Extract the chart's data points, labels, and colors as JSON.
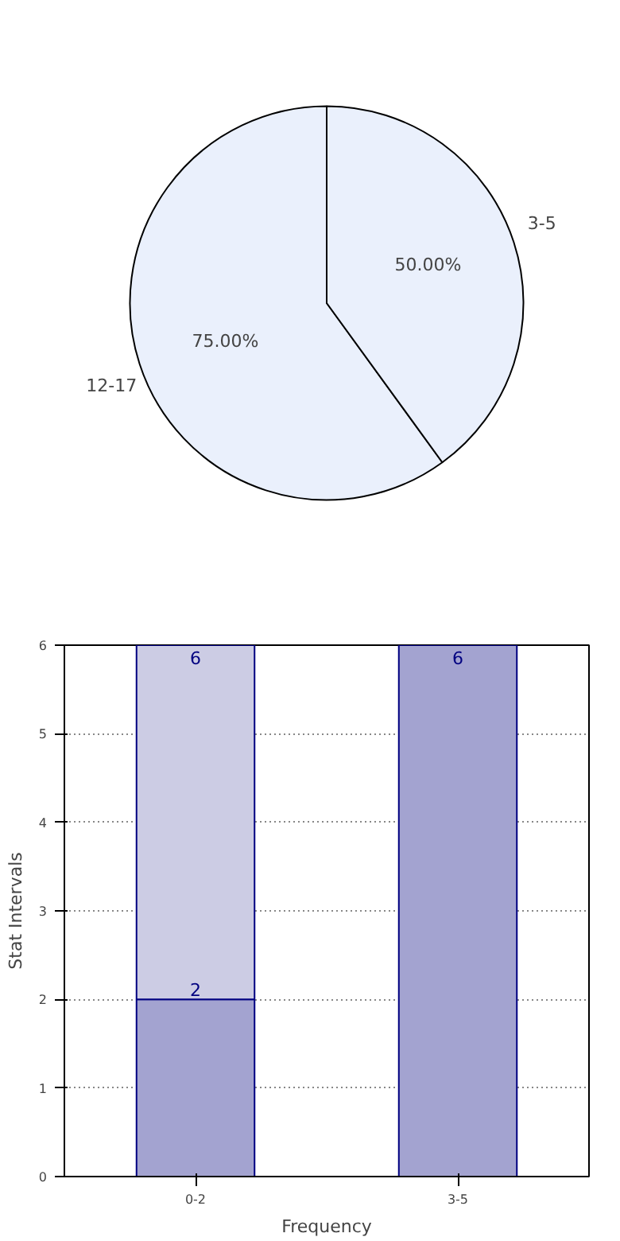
{
  "chart_data": [
    {
      "type": "pie",
      "categories": [
        "12-17",
        "3-5"
      ],
      "values": [
        75,
        50
      ],
      "colors": [
        "#eaf0fc",
        "#eaf0fc"
      ],
      "value_labels": [
        "75.00%",
        "50.00%"
      ]
    },
    {
      "type": "bar",
      "xlabel": "Frequency",
      "ylabel": "Stat Intervals",
      "categories": [
        "0-2",
        "3-5"
      ],
      "ylim": [
        0,
        6
      ],
      "yticks": [
        0,
        1,
        2,
        3,
        4,
        5,
        6
      ],
      "grid": true,
      "stacked": true,
      "totals": [
        "6",
        "6"
      ],
      "series": [
        {
          "color": "#a3a3d0",
          "values": [
            2,
            6
          ],
          "value_labels": [
            "2",
            null
          ]
        },
        {
          "color": "#cccce4",
          "values": [
            4,
            null
          ]
        }
      ]
    }
  ]
}
